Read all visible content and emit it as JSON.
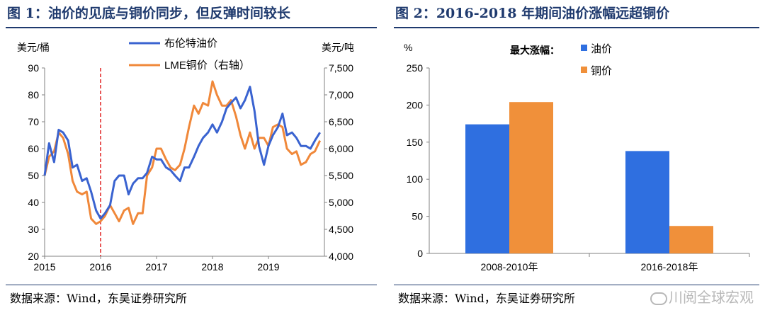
{
  "chart_data": [
    {
      "type": "line",
      "title": "图 1：油价的见底与铜价同步，但反弹时间较长",
      "y_left_unit": "美元/桶",
      "y_right_unit": "美元/吨",
      "xlabels": [
        "2015",
        "2016",
        "2017",
        "2018",
        "2019"
      ],
      "ylim_left": [
        20,
        90
      ],
      "ylim_right": [
        4000,
        7500
      ],
      "yticks_left": [
        "20",
        "30",
        "40",
        "50",
        "60",
        "70",
        "80",
        "90"
      ],
      "yticks_right": [
        "4,000",
        "4,500",
        "5,000",
        "5,500",
        "6,000",
        "6,500",
        "7,000",
        "7,500"
      ],
      "marker": {
        "x": 2016.0,
        "style": "dashed",
        "color": "#e02020"
      },
      "series": [
        {
          "name": "布伦特油价",
          "axis": "left",
          "color": "#3a63d0",
          "points": [
            [
              2015.0,
              50
            ],
            [
              2015.08,
              62
            ],
            [
              2015.17,
              55
            ],
            [
              2015.25,
              67
            ],
            [
              2015.33,
              66
            ],
            [
              2015.42,
              63
            ],
            [
              2015.5,
              53
            ],
            [
              2015.58,
              54
            ],
            [
              2015.67,
              48
            ],
            [
              2015.75,
              49
            ],
            [
              2015.83,
              44
            ],
            [
              2015.92,
              37
            ],
            [
              2016.0,
              34
            ],
            [
              2016.08,
              36
            ],
            [
              2016.17,
              39
            ],
            [
              2016.25,
              48
            ],
            [
              2016.33,
              50
            ],
            [
              2016.42,
              50
            ],
            [
              2016.5,
              43
            ],
            [
              2016.58,
              47
            ],
            [
              2016.67,
              49
            ],
            [
              2016.75,
              49
            ],
            [
              2016.83,
              51
            ],
            [
              2016.92,
              57
            ],
            [
              2017.0,
              56
            ],
            [
              2017.08,
              56
            ],
            [
              2017.17,
              53
            ],
            [
              2017.25,
              52
            ],
            [
              2017.33,
              50
            ],
            [
              2017.42,
              48
            ],
            [
              2017.5,
              53
            ],
            [
              2017.58,
              53
            ],
            [
              2017.67,
              57
            ],
            [
              2017.75,
              61
            ],
            [
              2017.83,
              64
            ],
            [
              2017.92,
              66
            ],
            [
              2018.0,
              69
            ],
            [
              2018.08,
              66
            ],
            [
              2018.17,
              70
            ],
            [
              2018.25,
              75
            ],
            [
              2018.33,
              77
            ],
            [
              2018.42,
              79
            ],
            [
              2018.5,
              75
            ],
            [
              2018.58,
              78
            ],
            [
              2018.67,
              83
            ],
            [
              2018.75,
              74
            ],
            [
              2018.83,
              61
            ],
            [
              2018.92,
              54
            ],
            [
              2019.0,
              61
            ],
            [
              2019.08,
              65
            ],
            [
              2019.17,
              68
            ],
            [
              2019.25,
              73
            ],
            [
              2019.33,
              65
            ],
            [
              2019.42,
              66
            ],
            [
              2019.5,
              64
            ],
            [
              2019.58,
              61
            ],
            [
              2019.67,
              61
            ],
            [
              2019.75,
              60
            ],
            [
              2019.83,
              63
            ],
            [
              2019.92,
              66
            ]
          ]
        },
        {
          "name": "LME铜价（右轴）",
          "axis": "right",
          "color": "#f0883a",
          "points": [
            [
              2015.0,
              5500
            ],
            [
              2015.08,
              5850
            ],
            [
              2015.17,
              5950
            ],
            [
              2015.25,
              6300
            ],
            [
              2015.33,
              6200
            ],
            [
              2015.42,
              5900
            ],
            [
              2015.5,
              5400
            ],
            [
              2015.58,
              5200
            ],
            [
              2015.67,
              5150
            ],
            [
              2015.75,
              5200
            ],
            [
              2015.83,
              4700
            ],
            [
              2015.92,
              4600
            ],
            [
              2016.0,
              4650
            ],
            [
              2016.08,
              4750
            ],
            [
              2016.17,
              4950
            ],
            [
              2016.25,
              4800
            ],
            [
              2016.33,
              4650
            ],
            [
              2016.42,
              4850
            ],
            [
              2016.5,
              4900
            ],
            [
              2016.58,
              4600
            ],
            [
              2016.67,
              4800
            ],
            [
              2016.75,
              4800
            ],
            [
              2016.83,
              5500
            ],
            [
              2016.92,
              5650
            ],
            [
              2017.0,
              6000
            ],
            [
              2017.08,
              6000
            ],
            [
              2017.17,
              5800
            ],
            [
              2017.25,
              5650
            ],
            [
              2017.33,
              5600
            ],
            [
              2017.42,
              5700
            ],
            [
              2017.5,
              6000
            ],
            [
              2017.58,
              6400
            ],
            [
              2017.67,
              6800
            ],
            [
              2017.75,
              6650
            ],
            [
              2017.83,
              6850
            ],
            [
              2017.92,
              6800
            ],
            [
              2018.0,
              7250
            ],
            [
              2018.08,
              7000
            ],
            [
              2018.17,
              6800
            ],
            [
              2018.25,
              6800
            ],
            [
              2018.33,
              6900
            ],
            [
              2018.42,
              6600
            ],
            [
              2018.5,
              6250
            ],
            [
              2018.58,
              6000
            ],
            [
              2018.67,
              6300
            ],
            [
              2018.75,
              6000
            ],
            [
              2018.83,
              6200
            ],
            [
              2018.92,
              6200
            ],
            [
              2019.0,
              6050
            ],
            [
              2019.08,
              6400
            ],
            [
              2019.17,
              6450
            ],
            [
              2019.25,
              6400
            ],
            [
              2019.33,
              6000
            ],
            [
              2019.42,
              5900
            ],
            [
              2019.5,
              5950
            ],
            [
              2019.58,
              5700
            ],
            [
              2019.67,
              5750
            ],
            [
              2019.75,
              5900
            ],
            [
              2019.83,
              5950
            ],
            [
              2019.92,
              6150
            ]
          ]
        }
      ],
      "source": "数据来源：Wind，东吴证券研究所"
    },
    {
      "type": "bar",
      "title": "图 2：2016-2018 年期间油价涨幅远超铜价",
      "y_unit": "%",
      "legend_title": "最大涨幅：",
      "categories": [
        "2008-2010年",
        "2016-2018年"
      ],
      "ylim": [
        0,
        250
      ],
      "yticks": [
        "0",
        "50",
        "100",
        "150",
        "200",
        "250"
      ],
      "series": [
        {
          "name": "油价",
          "color": "#2f6fe0",
          "values": [
            174,
            138
          ]
        },
        {
          "name": "铜价",
          "color": "#f0903a",
          "values": [
            204,
            37
          ]
        }
      ],
      "source": "数据来源：Wind，东吴证券研究所"
    }
  ],
  "watermark": "川阅全球宏观"
}
